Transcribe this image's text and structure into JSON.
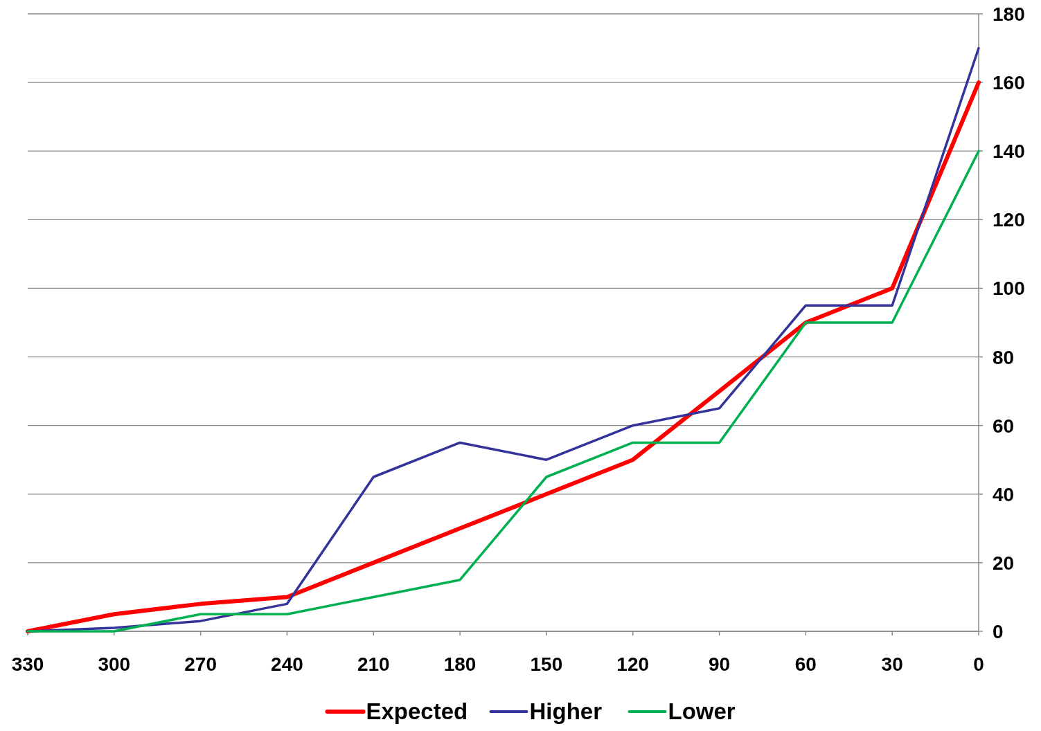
{
  "chart_data": {
    "type": "line",
    "x": [
      330,
      300,
      270,
      240,
      210,
      180,
      150,
      120,
      90,
      60,
      30,
      0
    ],
    "series": [
      {
        "name": "Expected",
        "color": "#ff0000",
        "values": [
          0,
          5,
          8,
          10,
          20,
          30,
          40,
          50,
          70,
          90,
          100,
          160
        ]
      },
      {
        "name": "Higher",
        "color": "#333399",
        "values": [
          0,
          1,
          3,
          8,
          45,
          55,
          50,
          60,
          65,
          95,
          95,
          170
        ]
      },
      {
        "name": "Lower",
        "color": "#00b050",
        "values": [
          0,
          0,
          5,
          5,
          10,
          15,
          45,
          55,
          55,
          90,
          90,
          140
        ]
      }
    ],
    "xlim": [
      330,
      0
    ],
    "xticks": [
      330,
      300,
      270,
      240,
      210,
      180,
      150,
      120,
      90,
      60,
      30,
      0
    ],
    "ylim": [
      0,
      180
    ],
    "yticks": [
      0,
      20,
      40,
      60,
      80,
      100,
      120,
      140,
      160,
      180
    ],
    "grid": "y",
    "legend": "bottom",
    "marker": "none",
    "line_style": "solid"
  }
}
